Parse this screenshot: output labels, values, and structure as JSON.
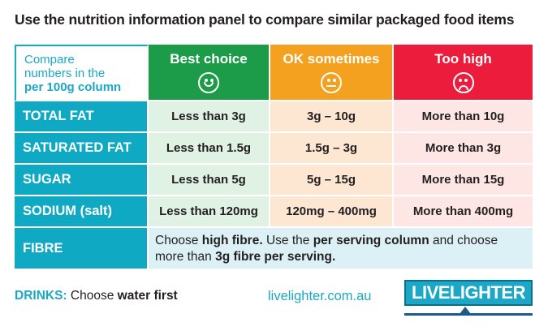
{
  "heading": "Use the nutrition information panel to compare similar packaged food items",
  "intro": {
    "line1": "Compare",
    "line2": "numbers in the",
    "line3": "per 100g column"
  },
  "columns": [
    {
      "label": "Best choice",
      "face": "smile-icon",
      "color": "#1c9b48"
    },
    {
      "label": "OK sometimes",
      "face": "neutral-face-icon",
      "color": "#f3a11e"
    },
    {
      "label": "Too high",
      "face": "frown-icon",
      "color": "#ec1c3d"
    }
  ],
  "rows": [
    {
      "label": "TOTAL FAT",
      "best": "Less than 3g",
      "ok": "3g – 10g",
      "high": "More than 10g"
    },
    {
      "label": "SATURATED FAT",
      "best": "Less than 1.5g",
      "ok": "1.5g – 3g",
      "high": "More than 3g"
    },
    {
      "label": "SUGAR",
      "best": "Less than 5g",
      "ok": "5g – 15g",
      "high": "More than 15g"
    },
    {
      "label": "SODIUM (salt)",
      "best": "Less than 120mg",
      "ok": "120mg – 400mg",
      "high": "More than 400mg"
    }
  ],
  "fibre": {
    "label": "FIBRE",
    "t1": "Choose ",
    "b1": "high fibre.",
    "t2": " Use the ",
    "b2": "per serving column",
    "t3": " and choose more than ",
    "b3": "3g fibre per serving."
  },
  "footer": {
    "drinks_label": "DRINKS:",
    "drinks_t1": " Choose ",
    "drinks_b1": "water first",
    "website": "livelighter.com.au"
  },
  "logo": {
    "text": "LIVELIGHTER"
  }
}
